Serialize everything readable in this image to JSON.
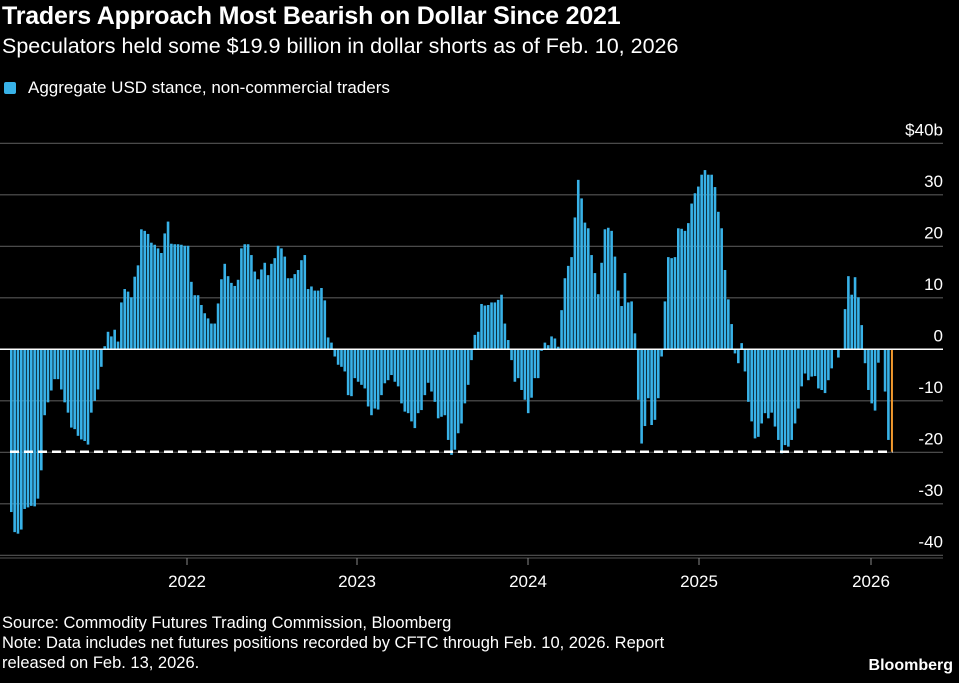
{
  "title": "Traders Approach Most Bearish on Dollar Since 2021",
  "subtitle": "Speculators held some $19.9 billion in dollar shorts as of Feb. 10, 2026",
  "footer": {
    "source": "Source: Commodity Futures Trading Commission, Bloomberg",
    "note_line1": "Note: Data includes net futures positions recorded by CFTC through Feb. 10, 2026. Report",
    "note_line2": "released on Feb. 13, 2026."
  },
  "brand": "Bloomberg",
  "colors": {
    "bars": "#38b2e8",
    "latest": "#f29a2e",
    "reference_line": "#ffffff",
    "grid": "#555555",
    "zero": "#ffffff"
  },
  "chart_data": {
    "type": "bar",
    "frequency": "weekly",
    "series": [
      {
        "name": "Aggregate USD stance, non-commercial traders",
        "values": [
          -31.6,
          -35.5,
          -35.8,
          -35,
          -31,
          -30.7,
          -30.4,
          -30.5,
          -29,
          -23.5,
          -12.8,
          -10.3,
          -8,
          -5.8,
          -5.8,
          -7.8,
          -10.3,
          -12.3,
          -15.2,
          -15.5,
          -16.8,
          -17.5,
          -17.8,
          -18.5,
          -12.3,
          -10,
          -7.8,
          -3.4,
          0.6,
          3.4,
          2.5,
          3.8,
          1.5,
          9.1,
          11.7,
          11.2,
          10.1,
          14.1,
          16.3,
          23.3,
          23,
          22.4,
          20.7,
          20.3,
          19.6,
          18.7,
          22.5,
          24.8,
          20.5,
          20.4,
          20.4,
          20.3,
          20.1,
          20.1,
          13.1,
          10.5,
          10.5,
          8.6,
          7,
          6,
          5,
          5,
          8.9,
          13.6,
          16.6,
          14.2,
          12.9,
          12.3,
          13.5,
          19.6,
          20.4,
          20.4,
          18.3,
          15.1,
          13.6,
          15.5,
          16.8,
          14.4,
          16.6,
          17.7,
          20.1,
          19.6,
          18,
          13.8,
          13.8,
          14.6,
          15.4,
          17.3,
          18.3,
          11.7,
          12.2,
          11.4,
          11.4,
          11.9,
          9.5,
          2.3,
          1.3,
          -1.4,
          -3,
          -3.4,
          -4.3,
          -8.9,
          -9.1,
          -5.6,
          -6.3,
          -6.9,
          -7.6,
          -11.1,
          -12.8,
          -11.5,
          -11.7,
          -8.9,
          -6.6,
          -6,
          -5,
          -6.3,
          -7.2,
          -10.5,
          -12.1,
          -12.4,
          -14,
          -15.3,
          -12.4,
          -11.8,
          -8.9,
          -6.5,
          -8.2,
          -10.2,
          -13.4,
          -13.1,
          -12.8,
          -17.6,
          -20.5,
          -19.5,
          -16.3,
          -14.4,
          -10.5,
          -6.9,
          -2.1,
          2.8,
          3.4,
          8.8,
          8.5,
          8.6,
          9.1,
          9.1,
          9.6,
          10.6,
          5,
          1.8,
          -2.1,
          -6.3,
          -5.6,
          -7.9,
          -9.8,
          -12.4,
          -9.4,
          -5.6,
          -5.6,
          -0.3,
          1.3,
          0.8,
          2.5,
          2.1,
          0.5,
          7.6,
          13.8,
          16.2,
          17.9,
          25.6,
          32.9,
          29.3,
          24.6,
          23.5,
          18.3,
          14.8,
          10.7,
          16.8,
          23.3,
          23.6,
          23,
          18,
          11.4,
          8.4,
          14.8,
          9.1,
          9.3,
          3.1,
          -9.8,
          -18.3,
          -14.9,
          -9.5,
          -14.7,
          -13.7,
          -9.5,
          -1.4,
          9.3,
          17.9,
          17.7,
          17.9,
          23.5,
          23.4,
          23,
          24.5,
          28.3,
          30.3,
          31.6,
          33.9,
          34.8,
          33.9,
          33.9,
          31.5,
          26.7,
          23.5,
          15.4,
          9.7,
          4.9,
          -0.8,
          -2.7,
          1.2,
          -4.3,
          -10.2,
          -14,
          -17.3,
          -17,
          -14.4,
          -12.4,
          -13.4,
          -12.3,
          -15,
          -17.6,
          -20.2,
          -18.6,
          -18.9,
          -17.6,
          -14.4,
          -11.5,
          -7.2,
          -4.7,
          -6,
          -5.3,
          -5.2,
          -7.6,
          -7.9,
          -8.5,
          -6,
          -3.7,
          -0.1,
          -1.6,
          -0.1,
          7.8,
          14.2,
          10.6,
          14,
          10.1,
          4.7,
          -2.7,
          -7.9,
          -10.5,
          -11.9,
          -2.6,
          -0.1,
          -8.2,
          -17.6,
          -19.9
        ]
      }
    ],
    "latest_value": -19.9,
    "reference_line": {
      "value": -19.9,
      "style": "dashed"
    },
    "x_tick_labels": [
      "2022",
      "2023",
      "2024",
      "2025",
      "2026"
    ],
    "y_tick_labels": [
      "$40b",
      "30",
      "20",
      "10",
      "0",
      "-10",
      "-20",
      "-30",
      "-40"
    ],
    "y_ticks": [
      40,
      30,
      20,
      10,
      0,
      -10,
      -20,
      -30,
      -40
    ],
    "ylim": [
      -40,
      40
    ],
    "unit": "$ billions",
    "grid": true,
    "legend_position": "top-left"
  }
}
